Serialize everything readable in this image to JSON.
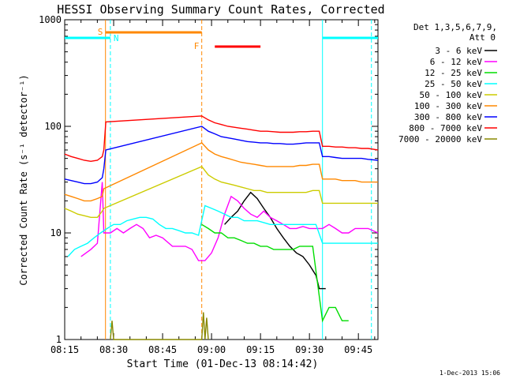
{
  "chart_data": {
    "type": "line",
    "title": "HESSI Observing Summary Count Rates, Corrected",
    "xlabel": "Start Time (01-Dec-13 08:14:42)",
    "ylabel": "Corrected Count Rate (s⁻¹ detector⁻¹)",
    "yscale": "log",
    "xlim_minutes": [
      0,
      96
    ],
    "ylim": [
      1,
      1000
    ],
    "x_ticks": [
      "08:15",
      "08:30",
      "08:45",
      "09:00",
      "09:15",
      "09:30",
      "09:45"
    ],
    "y_ticks": [
      "1",
      "10",
      "100",
      "1000"
    ],
    "legend_header": [
      "Det 1,3,5,6,7,9,",
      "Att 0"
    ],
    "footer_date": "1-Dec-2013 15:06",
    "series": [
      {
        "name": "3 - 6 keV",
        "color": "#000000",
        "points": [
          [
            49,
            12
          ],
          [
            51,
            14
          ],
          [
            53,
            16
          ],
          [
            55,
            20
          ],
          [
            57,
            24
          ],
          [
            59,
            21
          ],
          [
            61,
            17
          ],
          [
            63,
            14
          ],
          [
            65,
            11
          ],
          [
            67,
            9
          ],
          [
            69,
            7.5
          ],
          [
            71,
            6.5
          ],
          [
            73,
            6
          ],
          [
            75,
            5
          ],
          [
            77,
            4
          ],
          [
            78,
            3
          ],
          [
            80,
            3
          ]
        ]
      },
      {
        "name": "6 - 12 keV",
        "color": "#ff00ff",
        "points": [
          [
            5,
            6
          ],
          [
            8,
            7
          ],
          [
            10,
            8
          ],
          [
            11.5,
            30
          ],
          [
            12,
            10
          ],
          [
            14,
            10
          ],
          [
            16,
            11
          ],
          [
            18,
            10
          ],
          [
            20,
            11
          ],
          [
            22,
            12
          ],
          [
            24,
            11
          ],
          [
            26,
            9
          ],
          [
            28,
            9.5
          ],
          [
            30,
            9
          ],
          [
            33,
            7.5
          ],
          [
            35,
            7.5
          ],
          [
            37,
            7.5
          ],
          [
            39,
            7
          ],
          [
            41,
            5.5
          ],
          [
            43,
            5.5
          ],
          [
            45,
            6.5
          ],
          [
            47,
            9
          ],
          [
            49,
            15
          ],
          [
            51,
            22
          ],
          [
            53,
            20
          ],
          [
            55,
            17
          ],
          [
            57,
            15
          ],
          [
            59,
            14
          ],
          [
            61,
            16
          ],
          [
            63,
            14
          ],
          [
            65,
            13
          ],
          [
            67,
            12
          ],
          [
            69,
            11
          ],
          [
            71,
            11
          ],
          [
            73,
            11.5
          ],
          [
            75,
            11
          ],
          [
            77,
            11
          ],
          [
            79,
            11
          ],
          [
            81,
            12
          ],
          [
            83,
            11
          ],
          [
            85,
            10
          ],
          [
            87,
            10
          ],
          [
            89,
            11
          ],
          [
            91,
            11
          ],
          [
            93,
            11
          ],
          [
            96,
            10
          ]
        ]
      },
      {
        "name": "12 - 25 keV",
        "color": "#00dd00",
        "points": [
          [
            42,
            12
          ],
          [
            44,
            11
          ],
          [
            46,
            10
          ],
          [
            48,
            10
          ],
          [
            50,
            9
          ],
          [
            52,
            9
          ],
          [
            54,
            8.5
          ],
          [
            56,
            8
          ],
          [
            58,
            8
          ],
          [
            60,
            7.5
          ],
          [
            62,
            7.5
          ],
          [
            64,
            7
          ],
          [
            66,
            7
          ],
          [
            68,
            7
          ],
          [
            70,
            7
          ],
          [
            72,
            7.5
          ],
          [
            74,
            7.5
          ],
          [
            76,
            7.5
          ],
          [
            79,
            1.5
          ],
          [
            81,
            2
          ],
          [
            83,
            2
          ],
          [
            85,
            1.5
          ],
          [
            87,
            1.5
          ]
        ]
      },
      {
        "name": "25 - 50 keV",
        "color": "#00ffff",
        "points": [
          [
            1,
            6
          ],
          [
            3,
            7
          ],
          [
            5,
            7.5
          ],
          [
            7,
            8
          ],
          [
            9,
            9
          ],
          [
            11,
            10
          ],
          [
            13,
            11
          ],
          [
            15,
            12
          ],
          [
            17,
            12
          ],
          [
            19,
            13
          ],
          [
            21,
            13.5
          ],
          [
            23,
            14
          ],
          [
            25,
            14
          ],
          [
            27,
            13.5
          ],
          [
            29,
            12
          ],
          [
            31,
            11
          ],
          [
            33,
            11
          ],
          [
            35,
            10.5
          ],
          [
            37,
            10
          ],
          [
            39,
            10
          ],
          [
            41,
            9.5
          ],
          [
            43,
            18
          ],
          [
            45,
            17
          ],
          [
            47,
            16
          ],
          [
            49,
            15
          ],
          [
            51,
            14
          ],
          [
            53,
            14
          ],
          [
            55,
            13
          ],
          [
            57,
            13
          ],
          [
            59,
            13
          ],
          [
            61,
            12.5
          ],
          [
            63,
            12
          ],
          [
            65,
            12
          ],
          [
            67,
            12
          ],
          [
            69,
            12
          ],
          [
            71,
            12
          ],
          [
            73,
            12
          ],
          [
            75,
            12
          ],
          [
            77,
            12
          ],
          [
            79,
            8
          ],
          [
            81,
            8
          ],
          [
            83,
            8
          ],
          [
            85,
            8
          ],
          [
            87,
            8
          ],
          [
            89,
            8
          ],
          [
            91,
            8
          ],
          [
            93,
            8
          ],
          [
            96,
            8
          ]
        ]
      },
      {
        "name": "50 - 100 keV",
        "color": "#cccc00",
        "points": [
          [
            0,
            17
          ],
          [
            2,
            16
          ],
          [
            4,
            15
          ],
          [
            6,
            14.5
          ],
          [
            8,
            14
          ],
          [
            10,
            14
          ],
          [
            11.5,
            16
          ],
          [
            12,
            17
          ],
          [
            42,
            42
          ],
          [
            44,
            35
          ],
          [
            46,
            32
          ],
          [
            48,
            30
          ],
          [
            50,
            29
          ],
          [
            52,
            28
          ],
          [
            54,
            27
          ],
          [
            56,
            26
          ],
          [
            58,
            25
          ],
          [
            60,
            25
          ],
          [
            62,
            24
          ],
          [
            64,
            24
          ],
          [
            66,
            24
          ],
          [
            68,
            24
          ],
          [
            70,
            24
          ],
          [
            72,
            24
          ],
          [
            74,
            24
          ],
          [
            76,
            25
          ],
          [
            78,
            25
          ],
          [
            79,
            19
          ],
          [
            81,
            19
          ],
          [
            83,
            19
          ],
          [
            85,
            19
          ],
          [
            87,
            19
          ],
          [
            89,
            19
          ],
          [
            91,
            19
          ],
          [
            93,
            19
          ],
          [
            96,
            19
          ]
        ]
      },
      {
        "name": "100 - 300 keV",
        "color": "#ff8800",
        "points": [
          [
            0,
            23
          ],
          [
            2,
            22
          ],
          [
            4,
            21
          ],
          [
            6,
            20
          ],
          [
            8,
            20
          ],
          [
            10,
            21
          ],
          [
            11.5,
            22
          ],
          [
            12,
            26
          ],
          [
            42,
            70
          ],
          [
            44,
            60
          ],
          [
            46,
            55
          ],
          [
            48,
            52
          ],
          [
            50,
            50
          ],
          [
            52,
            48
          ],
          [
            54,
            46
          ],
          [
            56,
            45
          ],
          [
            58,
            44
          ],
          [
            60,
            43
          ],
          [
            62,
            42
          ],
          [
            64,
            42
          ],
          [
            66,
            42
          ],
          [
            68,
            42
          ],
          [
            70,
            42
          ],
          [
            72,
            43
          ],
          [
            74,
            43
          ],
          [
            76,
            44
          ],
          [
            78,
            44
          ],
          [
            79,
            32
          ],
          [
            81,
            32
          ],
          [
            83,
            32
          ],
          [
            85,
            31
          ],
          [
            87,
            31
          ],
          [
            89,
            31
          ],
          [
            91,
            30
          ],
          [
            93,
            30
          ],
          [
            96,
            30
          ]
        ]
      },
      {
        "name": "300 - 800 keV",
        "color": "#0000ff",
        "points": [
          [
            0,
            32
          ],
          [
            2,
            31
          ],
          [
            4,
            30
          ],
          [
            6,
            29
          ],
          [
            8,
            29
          ],
          [
            10,
            30
          ],
          [
            11.5,
            33
          ],
          [
            12,
            40
          ],
          [
            12.6,
            60
          ],
          [
            42,
            100
          ],
          [
            44,
            90
          ],
          [
            46,
            85
          ],
          [
            48,
            80
          ],
          [
            50,
            78
          ],
          [
            52,
            76
          ],
          [
            54,
            74
          ],
          [
            56,
            72
          ],
          [
            58,
            71
          ],
          [
            60,
            70
          ],
          [
            62,
            70
          ],
          [
            64,
            69
          ],
          [
            66,
            69
          ],
          [
            68,
            68
          ],
          [
            70,
            68
          ],
          [
            72,
            69
          ],
          [
            74,
            70
          ],
          [
            76,
            70
          ],
          [
            78,
            70
          ],
          [
            79,
            52
          ],
          [
            81,
            52
          ],
          [
            83,
            51
          ],
          [
            85,
            50
          ],
          [
            87,
            50
          ],
          [
            89,
            50
          ],
          [
            91,
            50
          ],
          [
            93,
            49
          ],
          [
            96,
            48
          ]
        ]
      },
      {
        "name": "800 - 7000 keV",
        "color": "#ff0000",
        "points": [
          [
            0,
            55
          ],
          [
            2,
            52
          ],
          [
            4,
            50
          ],
          [
            6,
            48
          ],
          [
            8,
            47
          ],
          [
            10,
            48
          ],
          [
            11.5,
            52
          ],
          [
            12,
            60
          ],
          [
            12.6,
            110
          ],
          [
            42,
            125
          ],
          [
            44,
            115
          ],
          [
            46,
            108
          ],
          [
            48,
            104
          ],
          [
            50,
            100
          ],
          [
            52,
            98
          ],
          [
            54,
            96
          ],
          [
            56,
            94
          ],
          [
            58,
            92
          ],
          [
            60,
            90
          ],
          [
            62,
            90
          ],
          [
            64,
            89
          ],
          [
            66,
            88
          ],
          [
            68,
            88
          ],
          [
            70,
            88
          ],
          [
            72,
            89
          ],
          [
            74,
            89
          ],
          [
            76,
            90
          ],
          [
            78,
            90
          ],
          [
            79,
            65
          ],
          [
            81,
            65
          ],
          [
            83,
            64
          ],
          [
            85,
            64
          ],
          [
            87,
            63
          ],
          [
            89,
            63
          ],
          [
            91,
            62
          ],
          [
            93,
            62
          ],
          [
            96,
            60
          ]
        ]
      },
      {
        "name": "7000 - 20000 keV",
        "color": "#888800",
        "points": [
          [
            14,
            1
          ],
          [
            14.5,
            1.5
          ],
          [
            15,
            1
          ],
          [
            42,
            1
          ],
          [
            42.5,
            1.8
          ],
          [
            43,
            1
          ],
          [
            43.5,
            1.6
          ],
          [
            44,
            1
          ]
        ]
      }
    ],
    "attenuator_markers": [
      {
        "label": "S",
        "minute": 12.5,
        "color": "#ff8800"
      },
      {
        "label": "N",
        "minute": 14,
        "color": "#00ffff"
      },
      {
        "label": "F",
        "minute": 42,
        "color": "#ff8800"
      }
    ],
    "orbit_intervals": [
      {
        "label": "saa",
        "start": 12.5,
        "end": 42,
        "color": "#ff8800"
      },
      {
        "label": "night1",
        "start": 0,
        "end": 14,
        "color": "#00ffff"
      },
      {
        "label": "night2",
        "start": 79,
        "end": 96,
        "color": "#00ffff"
      },
      {
        "label": "flare",
        "start": 46,
        "end": 60,
        "color": "#ff0000"
      }
    ],
    "vertical_lines": [
      {
        "minute": 12.5,
        "color": "#ff8800",
        "style": "solid"
      },
      {
        "minute": 14,
        "color": "#00ffff",
        "style": "dashed"
      },
      {
        "minute": 42,
        "color": "#ff8800",
        "style": "dashed"
      },
      {
        "minute": 79,
        "color": "#00ffff",
        "style": "solid"
      },
      {
        "minute": 94,
        "color": "#00ffff",
        "style": "dashed"
      }
    ]
  }
}
